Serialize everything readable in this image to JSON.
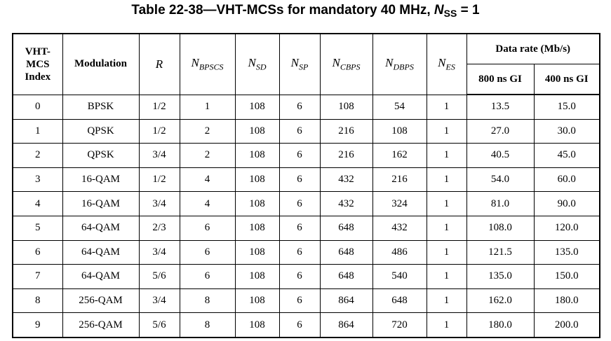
{
  "title": {
    "text": "Table 22-38—VHT-MCSs for mandatory 40 MHz,",
    "symbol": "N",
    "subscript": "SS",
    "equals": "= 1"
  },
  "table": {
    "index_header": [
      "VHT-",
      "MCS",
      "Index"
    ],
    "modulation_header": "Modulation",
    "symbol_headers": [
      {
        "symbol": "R",
        "subscript": null
      },
      {
        "symbol": "N",
        "subscript": "BPSCS"
      },
      {
        "symbol": "N",
        "subscript": "SD"
      },
      {
        "symbol": "N",
        "subscript": "SP"
      },
      {
        "symbol": "N",
        "subscript": "CBPS"
      },
      {
        "symbol": "N",
        "subscript": "DBPS"
      },
      {
        "symbol": "N",
        "subscript": "ES"
      }
    ],
    "data_rate_header": "Data rate (Mb/s)",
    "gi_headers": [
      "800 ns GI",
      "400 ns GI"
    ],
    "rows": [
      [
        "0",
        "BPSK",
        "1/2",
        "1",
        "108",
        "6",
        "108",
        "54",
        "1",
        "13.5",
        "15.0"
      ],
      [
        "1",
        "QPSK",
        "1/2",
        "2",
        "108",
        "6",
        "216",
        "108",
        "1",
        "27.0",
        "30.0"
      ],
      [
        "2",
        "QPSK",
        "3/4",
        "2",
        "108",
        "6",
        "216",
        "162",
        "1",
        "40.5",
        "45.0"
      ],
      [
        "3",
        "16-QAM",
        "1/2",
        "4",
        "108",
        "6",
        "432",
        "216",
        "1",
        "54.0",
        "60.0"
      ],
      [
        "4",
        "16-QAM",
        "3/4",
        "4",
        "108",
        "6",
        "432",
        "324",
        "1",
        "81.0",
        "90.0"
      ],
      [
        "5",
        "64-QAM",
        "2/3",
        "6",
        "108",
        "6",
        "648",
        "432",
        "1",
        "108.0",
        "120.0"
      ],
      [
        "6",
        "64-QAM",
        "3/4",
        "6",
        "108",
        "6",
        "648",
        "486",
        "1",
        "121.5",
        "135.0"
      ],
      [
        "7",
        "64-QAM",
        "5/6",
        "6",
        "108",
        "6",
        "648",
        "540",
        "1",
        "135.0",
        "150.0"
      ],
      [
        "8",
        "256-QAM",
        "3/4",
        "8",
        "108",
        "6",
        "864",
        "648",
        "1",
        "162.0",
        "180.0"
      ],
      [
        "9",
        "256-QAM",
        "5/6",
        "8",
        "108",
        "6",
        "864",
        "720",
        "1",
        "180.0",
        "200.0"
      ]
    ]
  }
}
